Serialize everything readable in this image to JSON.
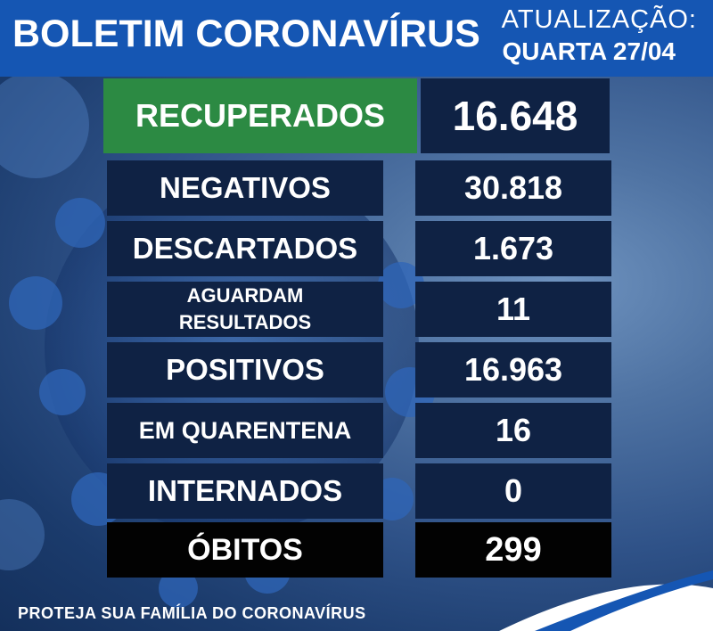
{
  "header": {
    "title": "BOLETIM CORONAVÍRUS",
    "update_label": "ATUALIZAÇÃO:",
    "update_date": "QUARTA 27/04"
  },
  "rows": [
    {
      "label": "RECUPERADOS",
      "value": "16.648"
    },
    {
      "label": "NEGATIVOS",
      "value": "30.818"
    },
    {
      "label": "DESCARTADOS",
      "value": "1.673"
    },
    {
      "label_line1": "AGUARDAM",
      "label_line2": "RESULTADOS",
      "value": "11"
    },
    {
      "label": "POSITIVOS",
      "value": "16.963"
    },
    {
      "label": "EM QUARENTENA",
      "value": "16"
    },
    {
      "label": "INTERNADOS",
      "value": "0"
    },
    {
      "label": "ÓBITOS",
      "value": "299"
    }
  ],
  "footer": {
    "text": "PROTEJA SUA FAMÍLIA DO CORONAVÍRUS"
  },
  "colors": {
    "header_blue": "#1556b3",
    "recovered_green": "#2c8a43",
    "row_navy": "#0f2244",
    "deaths_black": "#020202"
  },
  "icons": [
    "coronavirus-illustration"
  ]
}
